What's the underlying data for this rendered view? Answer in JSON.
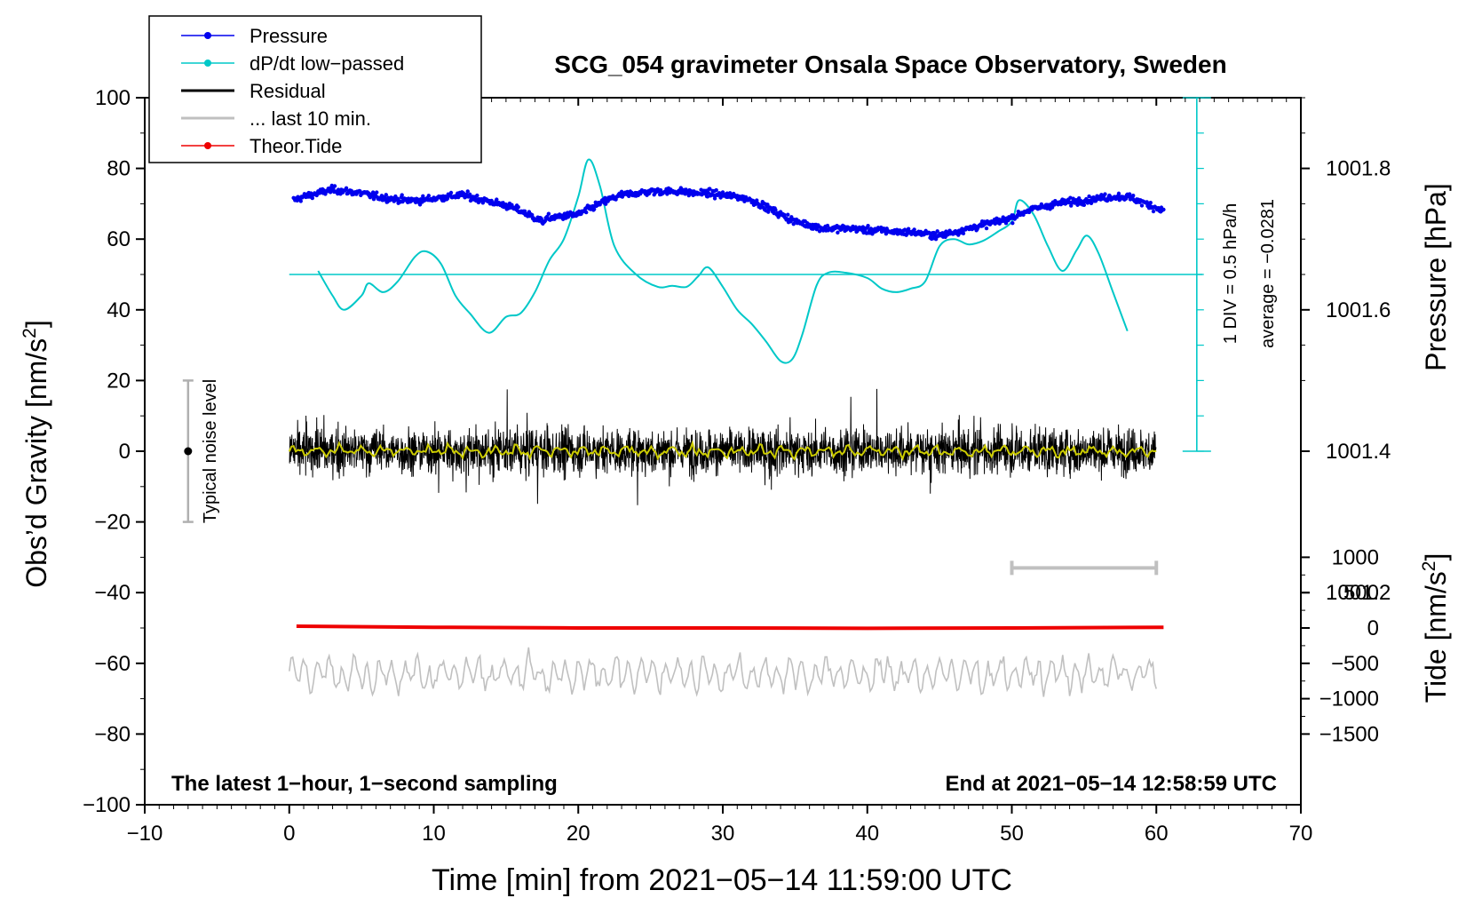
{
  "chart_data": {
    "type": "line",
    "title": "SCG_054 gravimeter Onsala Space Observatory, Sweden",
    "xlabel": "Time [min] from 2021−05−14 11:59:00 UTC",
    "ylabel_left": "Obs’d Gravity [nm/s",
    "ylabel_left_sup": "2",
    "ylabel_left_close": "]",
    "ylabel_right_pressure": "Pressure [hPa]",
    "ylabel_right_tide": "Tide [nm/s",
    "ylabel_right_tide_sup": "2",
    "ylabel_right_tide_close": "]",
    "xlim": [
      -10,
      70
    ],
    "ylim": [
      -100,
      100
    ],
    "x_ticks": [
      {
        "v": -10,
        "label": "−10"
      },
      {
        "v": 0,
        "label": "0"
      },
      {
        "v": 10,
        "label": "10"
      },
      {
        "v": 20,
        "label": "20"
      },
      {
        "v": 30,
        "label": "30"
      },
      {
        "v": 40,
        "label": "40"
      },
      {
        "v": 50,
        "label": "50"
      },
      {
        "v": 60,
        "label": "60"
      },
      {
        "v": 70,
        "label": "70"
      }
    ],
    "y_ticks": [
      {
        "v": 100,
        "label": "100"
      },
      {
        "v": 80,
        "label": "80"
      },
      {
        "v": 60,
        "label": "60"
      },
      {
        "v": 40,
        "label": "40"
      },
      {
        "v": 20,
        "label": "20"
      },
      {
        "v": 0,
        "label": "0"
      },
      {
        "v": -20,
        "label": "−20"
      },
      {
        "v": -40,
        "label": "−40"
      },
      {
        "v": -60,
        "label": "−60"
      },
      {
        "v": -80,
        "label": "−80"
      },
      {
        "v": -100,
        "label": "−100"
      }
    ],
    "pressure_axis": {
      "ticks": [
        {
          "v": 1001.8,
          "label": "1001.8"
        },
        {
          "v": 1001.6,
          "label": "1001.6"
        },
        {
          "v": 1001.4,
          "label": "1001.4"
        },
        {
          "v": 1001.2,
          "label": "1001.2"
        }
      ],
      "gravity_at_1001_8": 80,
      "gravity_per_hpa": 100
    },
    "tide_axis": {
      "ticks": [
        {
          "v": 1000,
          "label": "1000"
        },
        {
          "v": 500,
          "label": "500"
        },
        {
          "v": 0,
          "label": "0"
        },
        {
          "v": -500,
          "label": "−500"
        },
        {
          "v": -1000,
          "label": "−1000"
        },
        {
          "v": -1500,
          "label": "−1500"
        }
      ],
      "gravity_at_0": -50,
      "gravity_per_unit": 0.04
    },
    "legend": {
      "placement": "top-left",
      "entries": [
        {
          "label": "Pressure",
          "color": "#0000ee",
          "marker": "dot"
        },
        {
          "label": "dP/dt low−passed",
          "color": "#00c8c8",
          "marker": "dot"
        },
        {
          "label": "Residual",
          "color": "#000000",
          "marker": "none"
        },
        {
          "label": "... last 10 min.",
          "color": "#c0c0c0",
          "marker": "none"
        },
        {
          "label": "Theor.Tide",
          "color": "#ee0000",
          "marker": "dot"
        }
      ]
    },
    "series": [
      {
        "name": "Pressure",
        "unit": "gravity-scaled",
        "color": "#0000ee",
        "x": [
          0.3,
          1,
          2,
          3,
          4,
          5,
          6,
          7,
          8,
          9,
          10,
          11,
          12,
          13,
          14,
          15,
          16,
          17,
          17.5,
          18,
          19,
          20,
          21,
          22,
          23,
          24,
          25,
          26,
          27,
          28,
          29,
          30,
          31,
          32,
          33,
          34,
          35,
          36,
          37,
          38,
          39,
          40,
          41,
          42,
          43,
          44,
          45,
          46,
          47,
          48,
          49,
          50,
          51,
          52,
          53,
          54,
          55,
          56,
          57,
          58,
          59,
          60.5
        ],
        "y": [
          71,
          72,
          73,
          74,
          73.5,
          73,
          72,
          71.5,
          71,
          71,
          71.5,
          72,
          72.5,
          71.5,
          70.5,
          69.5,
          68,
          66,
          65,
          66,
          66.5,
          67,
          69,
          71,
          72.5,
          73,
          73.5,
          73.5,
          73.5,
          73,
          73,
          72.5,
          72,
          71,
          69,
          67,
          65,
          64,
          63,
          63,
          63,
          62.5,
          62.5,
          62,
          62,
          61.5,
          61,
          62,
          63,
          64,
          65,
          66,
          68,
          69,
          70,
          70.5,
          71,
          71.5,
          72,
          72,
          70.5,
          68
        ]
      },
      {
        "name": "dP/dt low−passed",
        "color": "#00c8c8",
        "baseline": 50,
        "x": [
          2,
          3,
          3.8,
          5,
          5.5,
          6.5,
          7.5,
          8.7,
          9.5,
          10.5,
          11.5,
          12.5,
          13.8,
          15,
          16,
          17,
          18,
          19,
          20,
          20.7,
          21.5,
          22.5,
          24,
          25.5,
          26.5,
          27.5,
          28.3,
          29,
          30,
          31,
          32,
          33,
          34,
          34.8,
          35.5,
          36.5,
          37.3,
          38.5,
          40,
          41,
          42,
          43,
          44,
          45,
          46,
          47,
          48,
          49,
          50,
          50.5,
          51.5,
          52.5,
          53.5,
          54.5,
          55.2,
          56,
          57,
          58
        ],
        "y": [
          51,
          44,
          40,
          44,
          47.5,
          45,
          48,
          55,
          56.5,
          53,
          44,
          39,
          33.5,
          38,
          39,
          45,
          54,
          60,
          72,
          82.5,
          75,
          58,
          50,
          46.5,
          46.8,
          46.5,
          49.5,
          52,
          46.5,
          40,
          36,
          31,
          25.5,
          26,
          33,
          47,
          50.5,
          50.5,
          49,
          46,
          45,
          46,
          48,
          58,
          60,
          58.5,
          59.5,
          62,
          65,
          71,
          67,
          58,
          51,
          57,
          61,
          56,
          45,
          34
        ]
      },
      {
        "name": "Residual",
        "color": "#000000",
        "x_start": 0,
        "x_end": 60,
        "noise_amplitude": 5
      },
      {
        "name": "... last 10 min.",
        "color": "#c0c0c0",
        "x_start": 0,
        "x_end": 60,
        "center": -63,
        "noise_amplitude": 5
      },
      {
        "name": "Theor.Tide",
        "color": "#ee0000",
        "x": [
          0.5,
          10,
          20,
          30,
          40,
          50,
          60.5
        ],
        "y": [
          -49.5,
          -49.8,
          -50,
          -50,
          -50.1,
          -50,
          -49.8
        ]
      }
    ],
    "annotations": {
      "noise_label": "Typical noise level",
      "noise_range": [
        -20,
        20
      ],
      "noise_x": -7,
      "pressure_scale_line1": "1 DIV = 0.5 hPa/h",
      "pressure_scale_line2": "average = −0.0281",
      "bottom_left": "The latest 1−hour, 1−second sampling",
      "bottom_right": "End at 2021−05−14 12:58:59 UTC",
      "last10_bar": [
        50,
        60
      ],
      "last10_bar_y": -33
    }
  }
}
